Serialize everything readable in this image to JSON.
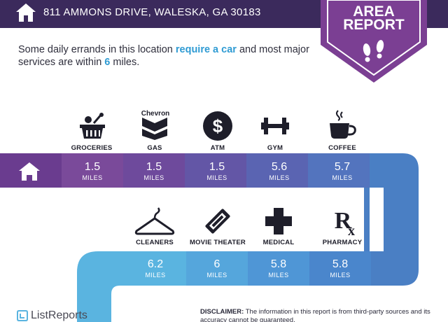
{
  "header": {
    "address": "811 AMMONS DRIVE, WALESKA, GA 30183"
  },
  "badge": {
    "line1": "AREA",
    "line2": "REPORT"
  },
  "summary": {
    "part1": "Some daily errands in this location ",
    "highlight1": "require a car",
    "part2": " and most major services are within ",
    "highlight2": "6",
    "part3": " miles."
  },
  "unit_label": "MILES",
  "row1": [
    {
      "label": "GROCERIES",
      "value": "1.5",
      "unit": "MILES",
      "icon": "grocery-basket-icon"
    },
    {
      "label": "GAS",
      "value": "1.5",
      "unit": "MILES",
      "icon": "chevron-gas-icon",
      "brand_text": "Chevron"
    },
    {
      "label": "ATM",
      "value": "1.5",
      "unit": "MILES",
      "icon": "dollar-icon"
    },
    {
      "label": "GYM",
      "value": "5.6",
      "unit": "MILES",
      "icon": "dumbbell-icon"
    },
    {
      "label": "COFFEE",
      "value": "5.7",
      "unit": "MILES",
      "icon": "coffee-cup-icon"
    }
  ],
  "row2": [
    {
      "label": "CLEANERS",
      "value": "6.2",
      "unit": "MILES",
      "icon": "hanger-icon"
    },
    {
      "label": "MOVIE THEATER",
      "value": "6",
      "unit": "MILES",
      "icon": "ticket-icon"
    },
    {
      "label": "MEDICAL",
      "value": "5.8",
      "unit": "MILES",
      "icon": "medical-cross-icon"
    },
    {
      "label": "PHARMACY",
      "value": "5.8",
      "unit": "MILES",
      "icon": "rx-icon"
    }
  ],
  "footer": {
    "brand": "ListReports",
    "disclaimer_label": "DISCLAIMER:",
    "disclaimer_text": " The information in this report is from third-party sources and its accuracy cannot be guaranteed."
  },
  "colors": {
    "header_bg": "#3b2a5c",
    "badge_purple": "#7b3f93",
    "band_purple_dark": "#6a3c8f",
    "band_blue": "#4a7fc4",
    "band_light_blue": "#5ab4e0",
    "accent": "#2f9bd3"
  }
}
